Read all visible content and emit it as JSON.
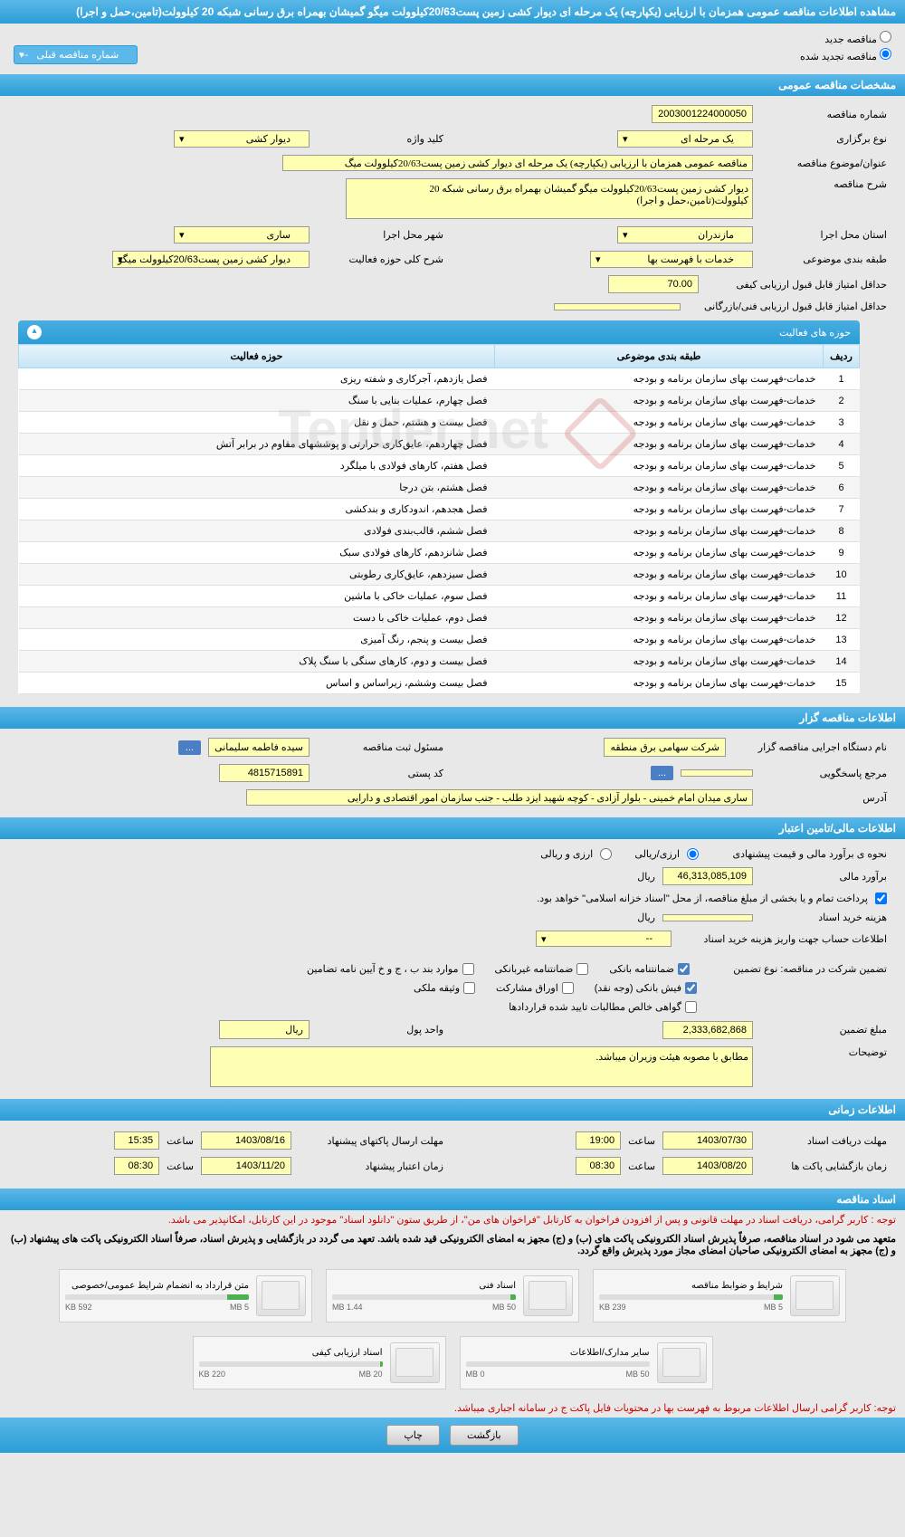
{
  "header": {
    "title": "مشاهده اطلاعات مناقصه عمومی همزمان با ارزیابی (یکپارچه) یک مرحله ای دیوار کشی زمین پست20/63کیلوولت میگو گمیشان بهمراه برق رسانی شبکه 20 کیلوولت(تامین،حمل و اجرا)"
  },
  "radios": {
    "new_tender": "مناقصه جدید",
    "renewed_tender": "مناقصه تجدید شده",
    "prev_tender_label": "شماره مناقصه قبلی",
    "prev_tender_value": "--"
  },
  "sections": {
    "general": "مشخصات مناقصه عمومی",
    "organizer": "اطلاعات مناقصه گزار",
    "financial": "اطلاعات مالی/تامین اعتبار",
    "timing": "اطلاعات زمانی",
    "documents": "اسناد مناقصه"
  },
  "general": {
    "tender_no_label": "شماره مناقصه",
    "tender_no": "2003001224000050",
    "type_label": "نوع برگزاری",
    "type_value": "یک مرحله ای",
    "keyword_label": "کلید واژه",
    "keyword_value": "دیوار کشی",
    "title_label": "عنوان/موضوع مناقصه",
    "title_value": "مناقصه عمومی همزمان با ارزیابی (یکپارچه) یک مرحله ای دیوار کشی زمین پست20/63کیلوولت میگ",
    "desc_label": "شرح مناقصه",
    "desc_value": "دیوار کشی زمین پست20/63کیلوولت میگو گمیشان بهمراه برق رسانی شبکه 20 کیلوولت(تامین،حمل و اجرا)",
    "province_label": "استان محل اجرا",
    "province_value": "مازندران",
    "city_label": "شهر محل اجرا",
    "city_value": "ساری",
    "category_label": "طبقه بندی موضوعی",
    "category_value": "خدمات با فهرست بها",
    "activity_desc_label": "شرح کلی حوزه فعالیت",
    "activity_desc_value": "دیوار کشی زمین پست20/63کیلوولت میگو",
    "min_quality_label": "حداقل امتیاز قابل قبول ارزیابی کیفی",
    "min_quality_value": "70.00",
    "min_tech_label": "حداقل امتیاز قابل قبول ارزیابی فنی/بازرگانی"
  },
  "activity_panel": {
    "title": "حوزه های فعالیت",
    "col_row": "ردیف",
    "col_category": "طبقه بندی موضوعی",
    "col_field": "حوزه فعالیت",
    "category_text": "خدمات-فهرست بهای سازمان برنامه و بودجه",
    "rows": [
      {
        "n": "1",
        "field": "فصل یازدهم، آجرکاری و شفته ریزی"
      },
      {
        "n": "2",
        "field": "فصل چهارم، عملیات بنایی با سنگ"
      },
      {
        "n": "3",
        "field": "فصل بیست و هشتم، حمل و نقل"
      },
      {
        "n": "4",
        "field": "فصل چهاردهم، عایق‌کاری حرارتی و پوششهای مقاوم در برابر آتش"
      },
      {
        "n": "5",
        "field": "فصل هفتم، کارهای فولادی با میلگرد"
      },
      {
        "n": "6",
        "field": "فصل هشتم، بتن درجا"
      },
      {
        "n": "7",
        "field": "فصل هجدهم، اندودکاری و بندکشی"
      },
      {
        "n": "8",
        "field": "فصل ششم، قالب‌بندی فولادی"
      },
      {
        "n": "9",
        "field": "فصل شانزدهم، کارهای فولادی سبک"
      },
      {
        "n": "10",
        "field": "فصل سیزدهم، عایق‌کاری رطوبتی"
      },
      {
        "n": "11",
        "field": "فصل سوم، عملیات خاکی با ماشین"
      },
      {
        "n": "12",
        "field": "فصل دوم، عملیات خاکی با دست"
      },
      {
        "n": "13",
        "field": "فصل بیست و پنجم، رنگ آمیزی"
      },
      {
        "n": "14",
        "field": "فصل بیست و دوم، کارهای سنگی با سنگ پلاک"
      },
      {
        "n": "15",
        "field": "فصل بیست وششم، زیراساس و اساس"
      }
    ]
  },
  "organizer": {
    "org_label": "نام دستگاه اجرایی مناقصه گزار",
    "org_value": "شرکت سهامی برق منطقه",
    "registrar_label": "مسئول ثبت مناقصه",
    "registrar_value": "سیده فاطمه سلیمانی",
    "more_btn": "...",
    "ref_label": "مرجع پاسخگویی",
    "postal_label": "کد پستی",
    "postal_value": "4815715891",
    "address_label": "آدرس",
    "address_value": "ساری میدان امام خمینی - بلوار آزادی - کوچه شهید ایزد طلب - جنب سازمان امور اقتصادی و دارایی"
  },
  "financial": {
    "estimate_method_label": "نحوه ی برآورد مالی و قیمت پیشنهادی",
    "radio_rial": "ارزی/ریالی",
    "radio_currency": "ارزی و ریالی",
    "estimate_label": "برآورد مالی",
    "estimate_value": "46,313,085,109",
    "rial": "ریال",
    "payment_note": "پرداخت تمام و یا بخشی از مبلغ مناقصه، از محل \"اسناد خزانه اسلامی\" خواهد بود.",
    "doc_fee_label": "هزینه خرید اسناد",
    "account_info_label": "اطلاعات حساب جهت واریز هزینه خرید اسناد",
    "account_info_value": "--",
    "guarantee_type_label": "تضمین شرکت در مناقصه:   نوع تضمین",
    "chk_bank_guarantee": "ضمانتنامه بانکی",
    "chk_nonbank_guarantee": "ضمانتنامه غیربانکی",
    "chk_items": "موارد بند ب ، ج و خ آیین نامه تضامین",
    "chk_bank_receipt": "فیش بانکی (وجه نقد)",
    "chk_securities": "اوراق مشارکت",
    "chk_property": "وثیقه ملکی",
    "chk_confirmed": "گواهی خالص مطالبات تایید شده قراردادها",
    "guarantee_amount_label": "مبلغ تضمین",
    "guarantee_amount_value": "2,333,682,868",
    "money_unit_label": "واحد پول",
    "notes_label": "توضیحات",
    "notes_value": "مطابق با مصوبه هیئت وزیران میباشد."
  },
  "timing": {
    "receive_deadline_label": "مهلت دریافت اسناد",
    "receive_deadline_date": "1403/07/30",
    "receive_deadline_time": "19:00",
    "packet_deadline_label": "مهلت ارسال پاکتهای پیشنهاد",
    "packet_deadline_date": "1403/08/16",
    "packet_deadline_time": "15:35",
    "opening_label": "زمان بازگشایی پاکت ها",
    "opening_date": "1403/08/20",
    "opening_time": "08:30",
    "validity_label": "زمان اعتبار پیشنهاد",
    "validity_date": "1403/11/20",
    "validity_time": "08:30",
    "time_label": "ساعت"
  },
  "documents": {
    "notice1": "توجه : کاربر گرامی، دریافت اسناد در مهلت قانونی و پس از افزودن فراخوان به کارتابل \"فراخوان های من\"، از طریق ستون \"دانلود اسناد\" موجود در این کارتابل، امکانپذیر می باشد.",
    "notice2": "متعهد می شود در اسناد مناقصه، صرفاً پذیرش اسناد الکترونیکی پاکت های (ب) و (ج) مجهز به امضای الکترونیکی قید شده باشد. تعهد می گردد در بازگشایی و پذیرش اسناد، صرفاً اسناد الکترونیکی پاکت های پیشنهاد (ب) و (ج) مجهز به امضای الکترونیکی صاحبان امضای مجاز مورد پذیرش واقع گردد.",
    "notice3": "توجه: کاربر گرامی ارسال اطلاعات مربوط به فهرست بها در محتویات فایل پاکت ج در سامانه اجباری میباشد.",
    "items": [
      {
        "title": "شرایط و ضوابط مناقصه",
        "used": "239 KB",
        "total": "5 MB",
        "pct": 5
      },
      {
        "title": "اسناد فنی",
        "used": "1.44 MB",
        "total": "50 MB",
        "pct": 3
      },
      {
        "title": "متن قرارداد به انضمام شرایط عمومی/خصوصی",
        "used": "592 KB",
        "total": "5 MB",
        "pct": 12
      },
      {
        "title": "سایر مدارک/اطلاعات",
        "used": "0 MB",
        "total": "50 MB",
        "pct": 0
      },
      {
        "title": "اسناد ارزیابی کیفی",
        "used": "220 KB",
        "total": "20 MB",
        "pct": 1
      }
    ]
  },
  "footer": {
    "back": "بازگشت",
    "print": "چاپ"
  }
}
